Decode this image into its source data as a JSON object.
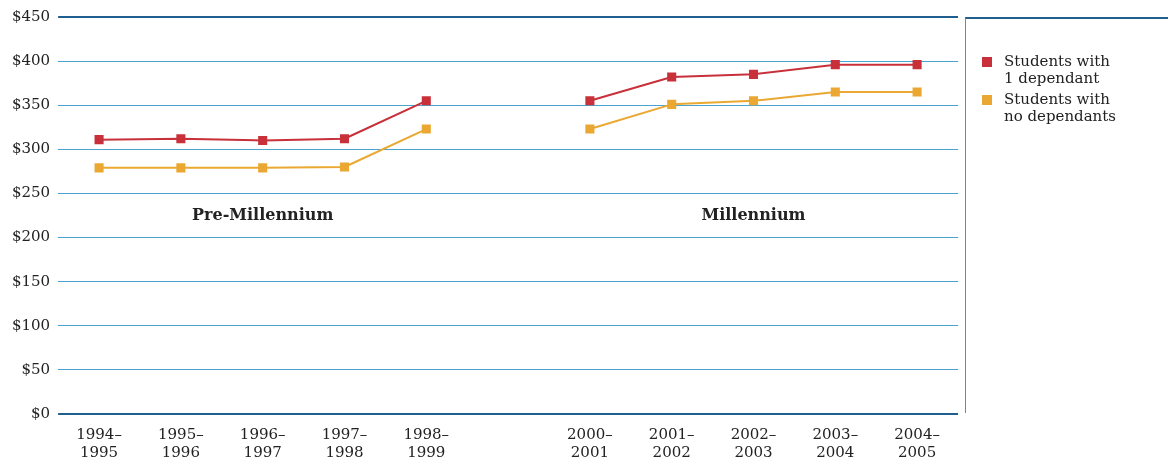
{
  "chart_data": {
    "type": "line",
    "categories": [
      "1994–1995",
      "1995–1996",
      "1996–1997",
      "1997–1998",
      "1998–1999",
      null,
      "2000–2001",
      "2001–2002",
      "2002–2003",
      "2003–2004",
      "2004–2005"
    ],
    "series": [
      {
        "name": "Students with 1 dependant",
        "color": "#c8303a",
        "values": [
          311,
          312,
          310,
          312,
          355,
          null,
          355,
          382,
          385,
          396,
          396
        ]
      },
      {
        "name": "Students with no dependants",
        "color": "#eaa832",
        "values": [
          279,
          279,
          279,
          280,
          323,
          null,
          323,
          351,
          355,
          365,
          365
        ]
      }
    ],
    "ylim": [
      0,
      450
    ],
    "yticks": [
      {
        "value": 0,
        "label": "$0"
      },
      {
        "value": 50,
        "label": "$50"
      },
      {
        "value": 100,
        "label": "$100"
      },
      {
        "value": 150,
        "label": "$150"
      },
      {
        "value": 200,
        "label": "$200"
      },
      {
        "value": 250,
        "label": "$250"
      },
      {
        "value": 300,
        "label": "$300"
      },
      {
        "value": 350,
        "label": "$350"
      },
      {
        "value": 400,
        "label": "$400"
      },
      {
        "value": 450,
        "label": "$450"
      }
    ],
    "grid": "y",
    "legend": "right",
    "marker": "square",
    "line_style": "solid",
    "annotations": [
      "Pre-Millennium",
      "Millennium"
    ]
  }
}
